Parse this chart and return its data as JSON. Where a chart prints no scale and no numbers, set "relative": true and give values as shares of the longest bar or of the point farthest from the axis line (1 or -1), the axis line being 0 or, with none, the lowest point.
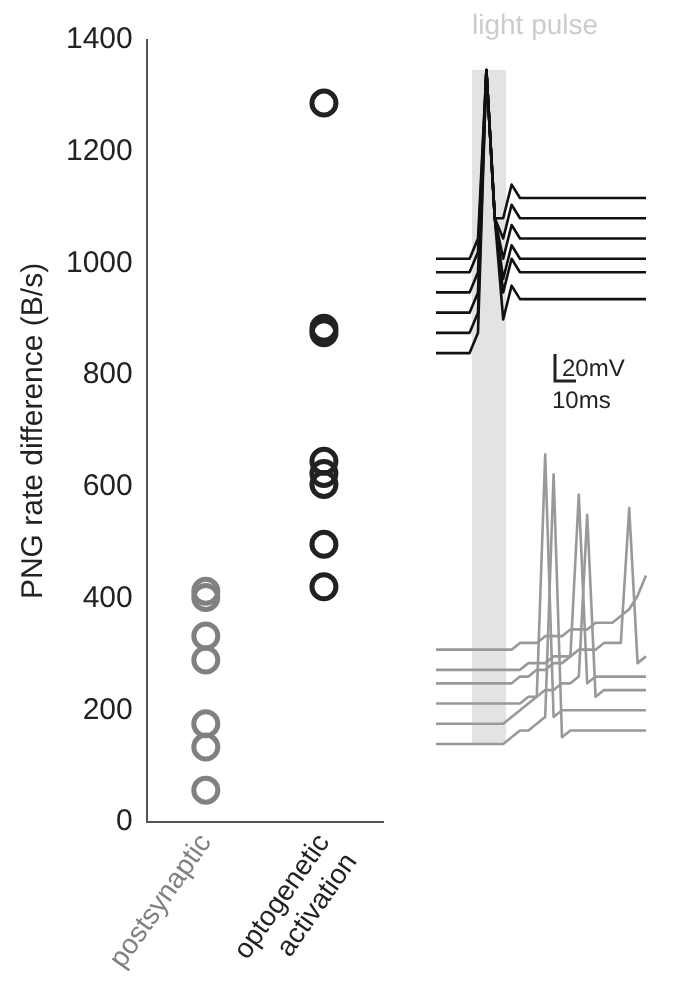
{
  "chart_data": [
    {
      "type": "scatter",
      "ylabel": "PNG rate difference (B/s)",
      "categories": [
        "postsynaptic",
        "optogenetic activation"
      ],
      "ylim": [
        0,
        1400
      ],
      "yticks": [
        0,
        200,
        400,
        600,
        800,
        1000,
        1200,
        1400
      ],
      "grid": false,
      "legend": false,
      "marker": "circle",
      "series": [
        {
          "color": "#808080",
          "x": [
            "postsynaptic",
            "postsynaptic",
            "postsynaptic",
            "postsynaptic",
            "postsynaptic",
            "postsynaptic",
            "postsynaptic"
          ],
          "values": [
            413,
            402,
            333,
            290,
            176,
            134,
            57
          ]
        },
        {
          "color": "#222222",
          "x": [
            "optogenetic activation",
            "optogenetic activation",
            "optogenetic activation",
            "optogenetic activation",
            "optogenetic activation",
            "optogenetic activation",
            "optogenetic activation",
            "optogenetic activation"
          ],
          "values": [
            1287,
            884,
            876,
            646,
            624,
            604,
            497,
            421
          ]
        }
      ]
    },
    {
      "type": "line",
      "relative": true,
      "grid": false,
      "legend": false,
      "marker": "none",
      "categories": [
        null,
        null,
        null,
        null,
        null,
        null,
        null,
        null,
        null,
        null,
        null,
        null,
        null,
        null,
        null,
        null,
        null,
        null,
        null,
        null,
        null,
        null,
        null,
        null,
        null,
        null
      ],
      "series": [
        {
          "color": "#111111",
          "values": [
            0.58,
            0.58,
            0.58,
            0.58,
            0.58,
            0.61,
            1,
            0.78,
            0.63,
            0.68,
            0.66,
            0.66,
            0.66,
            0.66,
            0.66,
            0.66,
            0.66,
            0.66,
            0.66,
            0.66,
            0.66,
            0.66,
            0.66,
            0.66,
            0.66,
            0.66
          ]
        },
        {
          "color": "#111111",
          "values": [
            0.61,
            0.61,
            0.61,
            0.61,
            0.61,
            0.64,
            1,
            0.78,
            0.67,
            0.72,
            0.7,
            0.7,
            0.7,
            0.7,
            0.7,
            0.7,
            0.7,
            0.7,
            0.7,
            0.7,
            0.7,
            0.7,
            0.7,
            0.7,
            0.7,
            0.7
          ]
        },
        {
          "color": "#111111",
          "values": [
            0.64,
            0.64,
            0.64,
            0.64,
            0.64,
            0.67,
            1,
            0.78,
            0.69,
            0.74,
            0.72,
            0.72,
            0.72,
            0.72,
            0.72,
            0.72,
            0.72,
            0.72,
            0.72,
            0.72,
            0.72,
            0.72,
            0.72,
            0.72,
            0.72,
            0.72
          ]
        },
        {
          "color": "#111111",
          "values": [
            0.67,
            0.67,
            0.67,
            0.67,
            0.67,
            0.7,
            1,
            0.78,
            0.72,
            0.77,
            0.75,
            0.75,
            0.75,
            0.75,
            0.75,
            0.75,
            0.75,
            0.75,
            0.75,
            0.75,
            0.75,
            0.75,
            0.75,
            0.75,
            0.75,
            0.75
          ]
        },
        {
          "color": "#111111",
          "values": [
            0.7,
            0.7,
            0.7,
            0.7,
            0.7,
            0.73,
            1,
            0.78,
            0.75,
            0.8,
            0.78,
            0.78,
            0.78,
            0.78,
            0.78,
            0.78,
            0.78,
            0.78,
            0.78,
            0.78,
            0.78,
            0.78,
            0.78,
            0.78,
            0.78,
            0.78
          ]
        },
        {
          "color": "#111111",
          "values": [
            0.72,
            0.72,
            0.72,
            0.72,
            0.72,
            0.75,
            1,
            0.78,
            0.78,
            0.83,
            0.81,
            0.81,
            0.81,
            0.81,
            0.81,
            0.81,
            0.81,
            0.81,
            0.81,
            0.81,
            0.81,
            0.81,
            0.81,
            0.81,
            0.81,
            0.81
          ]
        },
        {
          "color": "#999999",
          "values": [
            0,
            0,
            0,
            0,
            0,
            0,
            0,
            0,
            0,
            0.01,
            0.02,
            0.02,
            0.03,
            0.04,
            0.4,
            0.01,
            0.02,
            0.02,
            0.02,
            0.02,
            0.02,
            0.02,
            0.02,
            0.02,
            0.02,
            0.02
          ]
        },
        {
          "color": "#999999",
          "values": [
            0.03,
            0.03,
            0.03,
            0.03,
            0.03,
            0.03,
            0.03,
            0.03,
            0.03,
            0.04,
            0.05,
            0.06,
            0.07,
            0.43,
            0.04,
            0.05,
            0.05,
            0.05,
            0.05,
            0.05,
            0.05,
            0.05,
            0.05,
            0.05,
            0.05,
            0.05
          ]
        },
        {
          "color": "#999999",
          "values": [
            0.06,
            0.06,
            0.06,
            0.06,
            0.06,
            0.06,
            0.06,
            0.06,
            0.06,
            0.06,
            0.06,
            0.07,
            0.07,
            0.08,
            0.08,
            0.09,
            0.09,
            0.1,
            0.34,
            0.07,
            0.08,
            0.08,
            0.08,
            0.08,
            0.08,
            0.08
          ]
        },
        {
          "color": "#999999",
          "values": [
            0.09,
            0.09,
            0.09,
            0.09,
            0.09,
            0.09,
            0.09,
            0.09,
            0.09,
            0.09,
            0.1,
            0.1,
            0.11,
            0.11,
            0.12,
            0.12,
            0.13,
            0.37,
            0.09,
            0.1,
            0.1,
            0.1,
            0.1,
            0.1,
            0.1,
            0.1
          ]
        },
        {
          "color": "#999999",
          "values": [
            0.11,
            0.11,
            0.11,
            0.11,
            0.11,
            0.11,
            0.11,
            0.11,
            0.11,
            0.11,
            0.11,
            0.12,
            0.12,
            0.12,
            0.13,
            0.13,
            0.13,
            0.14,
            0.14,
            0.14,
            0.15,
            0.15,
            0.15,
            0.35,
            0.12,
            0.13
          ]
        },
        {
          "color": "#999999",
          "values": [
            0.14,
            0.14,
            0.14,
            0.14,
            0.14,
            0.14,
            0.14,
            0.14,
            0.14,
            0.14,
            0.15,
            0.15,
            0.15,
            0.16,
            0.16,
            0.16,
            0.17,
            0.17,
            0.17,
            0.18,
            0.18,
            0.18,
            0.19,
            0.2,
            0.22,
            0.25
          ]
        }
      ],
      "annotations": [
        "light pulse",
        "20mV",
        "10ms"
      ]
    }
  ]
}
